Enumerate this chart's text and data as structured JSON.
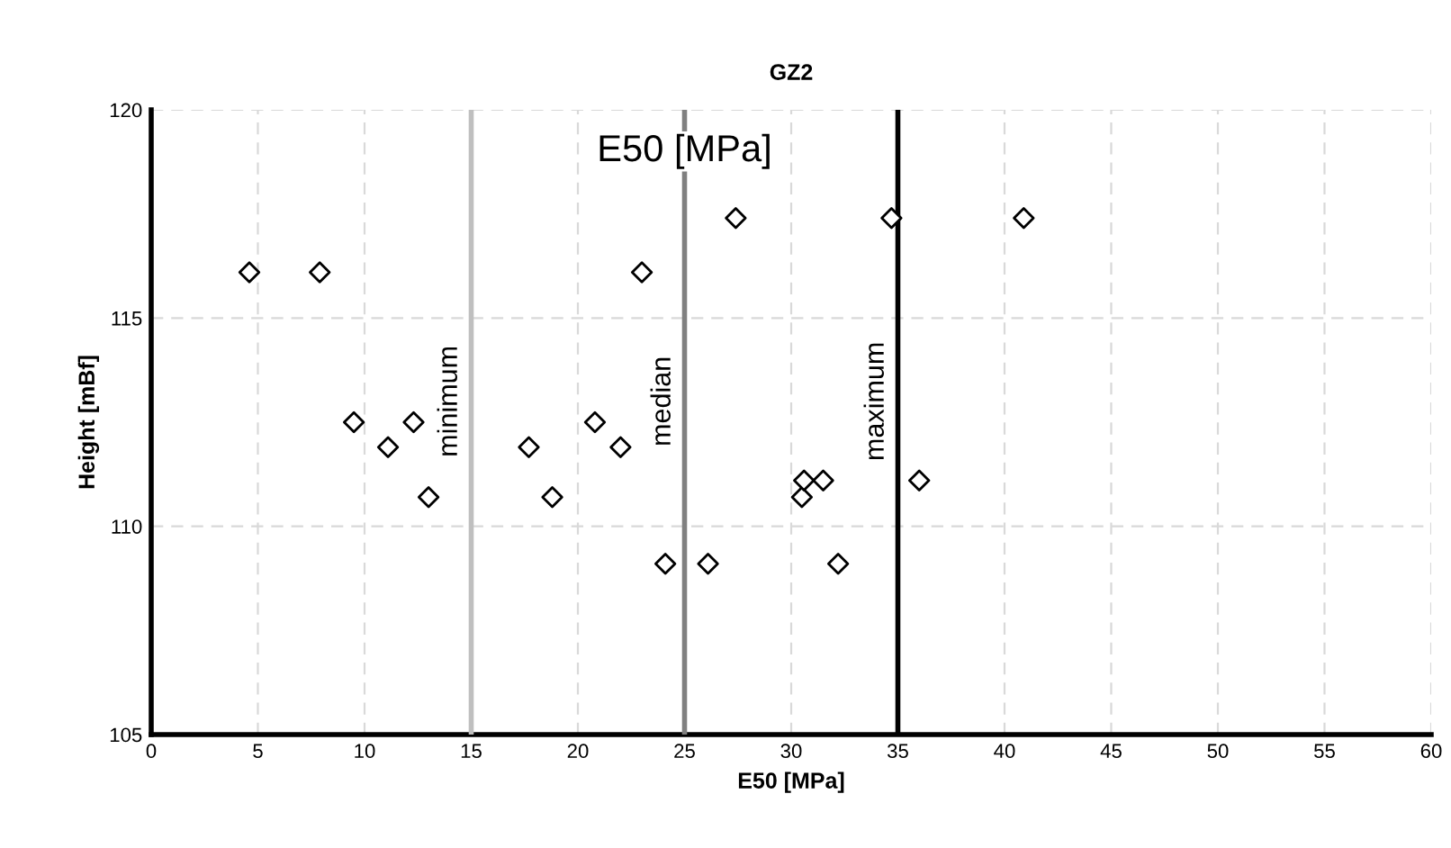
{
  "chart_data": {
    "type": "scatter",
    "title": "GZ2",
    "xlabel": "E50 [MPa]",
    "ylabel": "Height [mBf]",
    "x": [
      4.6,
      7.9,
      9.5,
      11.1,
      12.3,
      13.0,
      17.7,
      18.8,
      20.8,
      22.0,
      23.0,
      24.1,
      26.1,
      27.4,
      30.5,
      30.6,
      31.5,
      32.2,
      34.7,
      36.0,
      40.9
    ],
    "series": [
      {
        "color": "#000000",
        "values": [
          116.1,
          116.1,
          112.5,
          111.9,
          112.5,
          110.7,
          111.9,
          110.7,
          112.5,
          111.9,
          116.1,
          109.1,
          109.1,
          117.4,
          110.7,
          111.1,
          111.1,
          109.1,
          117.4,
          111.1,
          117.4
        ]
      }
    ],
    "marker": "diamond",
    "grid": true,
    "xlim": [
      0,
      60
    ],
    "xticks": [
      0,
      5,
      10,
      15,
      20,
      25,
      30,
      35,
      40,
      45,
      50,
      55,
      60
    ],
    "ylim": [
      105,
      120
    ],
    "yticks": [
      105,
      110,
      115,
      120
    ],
    "ref_lines": [
      {
        "axis": "x",
        "value": 15,
        "label": "minimum",
        "color": "#bfbfbf"
      },
      {
        "axis": "x",
        "value": 25,
        "label": "median",
        "color": "#808080"
      },
      {
        "axis": "x",
        "value": 35,
        "label": "maximum",
        "color": "#000000"
      }
    ],
    "annotations": [
      {
        "text": "E50 [MPa]",
        "x": 25,
        "y": 119
      }
    ]
  }
}
